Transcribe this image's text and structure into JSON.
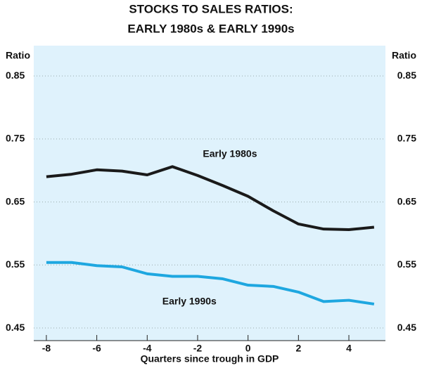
{
  "chart_data": {
    "type": "line",
    "title": [
      "STOCKS TO SALES RATIOS:",
      "EARLY 1980s & EARLY 1990s"
    ],
    "ylabel": "Ratio",
    "y2label": "Ratio",
    "xlabel": "Quarters since trough in GDP",
    "x": [
      -8,
      -7,
      -6,
      -5,
      -4,
      -3,
      -2,
      -1,
      0,
      1,
      2,
      3,
      4,
      5
    ],
    "series": [
      {
        "name": "Early 1980s",
        "color": "#1a1a1a",
        "values": [
          0.69,
          0.694,
          0.701,
          0.699,
          0.693,
          0.706,
          0.692,
          0.676,
          0.659,
          0.636,
          0.615,
          0.607,
          0.606,
          0.61
        ]
      },
      {
        "name": "Early 1990s",
        "color": "#1ea7e0",
        "values": [
          0.554,
          0.554,
          0.549,
          0.547,
          0.536,
          0.532,
          0.532,
          0.528,
          0.518,
          0.516,
          0.507,
          0.492,
          0.494,
          0.488
        ]
      }
    ],
    "xlim": [
      -8.5,
      5.45
    ],
    "xticks": [
      -8,
      -6,
      -4,
      -2,
      0,
      2,
      4
    ],
    "ylim": [
      0.43,
      0.898
    ],
    "yticks": [
      0.45,
      0.55,
      0.65,
      0.75,
      0.85
    ],
    "y2lim": [
      0.43,
      0.898
    ],
    "y2ticks": [
      0.45,
      0.55,
      0.65,
      0.75,
      0.85
    ],
    "grid": true,
    "background": "#dff2fc"
  }
}
